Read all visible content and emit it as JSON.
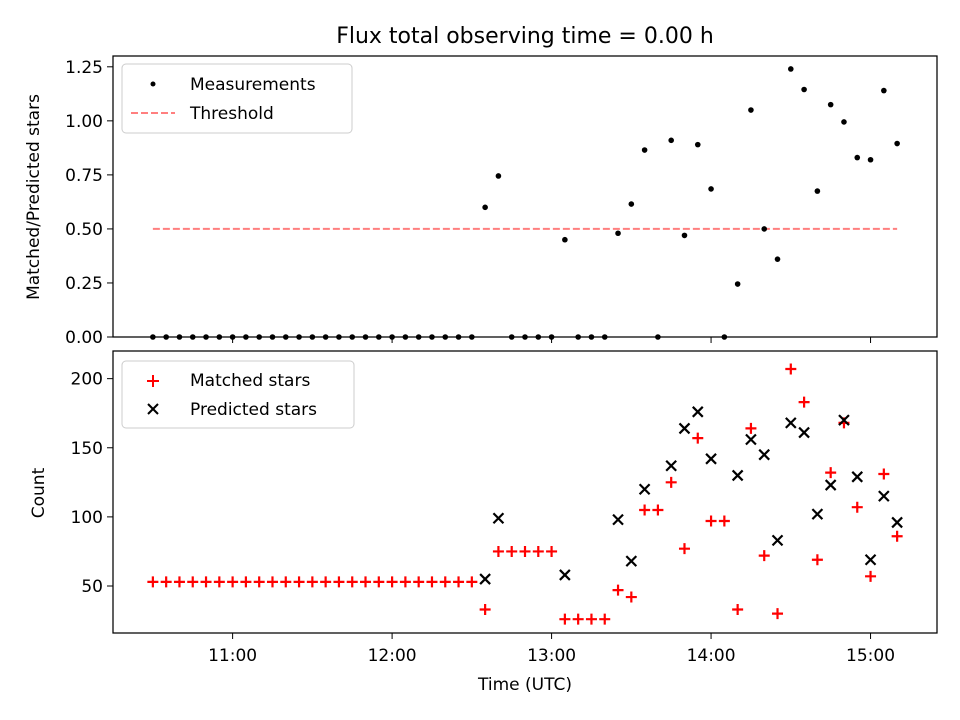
{
  "title": "Flux total observing time = 0.00 h",
  "colors": {
    "matched": "#ff0000",
    "predicted": "#000000",
    "threshold": "#ff7f7f",
    "measurement": "#000000"
  },
  "chart_data": [
    {
      "type": "scatter",
      "title": "Flux total observing time = 0.00 h",
      "xlabel": "",
      "ylabel": "Matched/Predicted stars",
      "ylim": [
        0,
        1.3
      ],
      "xlim": [
        "10:15",
        "15:25"
      ],
      "yticks": [
        "0.00",
        "0.25",
        "0.50",
        "0.75",
        "1.00",
        "1.25"
      ],
      "legend": [
        "Measurements",
        "Threshold"
      ],
      "legend_position": "top-left",
      "series": [
        {
          "name": "Measurements",
          "points": [
            [
              "10:30",
              0
            ],
            [
              "10:35",
              0
            ],
            [
              "10:40",
              0
            ],
            [
              "10:45",
              0
            ],
            [
              "10:50",
              0
            ],
            [
              "10:55",
              0
            ],
            [
              "11:00",
              0
            ],
            [
              "11:05",
              0
            ],
            [
              "11:10",
              0
            ],
            [
              "11:15",
              0
            ],
            [
              "11:20",
              0
            ],
            [
              "11:25",
              0
            ],
            [
              "11:30",
              0
            ],
            [
              "11:35",
              0
            ],
            [
              "11:40",
              0
            ],
            [
              "11:45",
              0
            ],
            [
              "11:50",
              0
            ],
            [
              "11:55",
              0
            ],
            [
              "12:00",
              0
            ],
            [
              "12:05",
              0
            ],
            [
              "12:10",
              0
            ],
            [
              "12:15",
              0
            ],
            [
              "12:20",
              0
            ],
            [
              "12:25",
              0
            ],
            [
              "12:30",
              0
            ],
            [
              "12:35",
              0.6
            ],
            [
              "12:40",
              0.745
            ],
            [
              "12:45",
              0
            ],
            [
              "12:50",
              0
            ],
            [
              "12:55",
              0
            ],
            [
              "13:00",
              0
            ],
            [
              "13:05",
              0.45
            ],
            [
              "13:10",
              0
            ],
            [
              "13:15",
              0
            ],
            [
              "13:20",
              0
            ],
            [
              "13:25",
              0.48
            ],
            [
              "13:30",
              0.615
            ],
            [
              "13:35",
              0.865
            ],
            [
              "13:40",
              0
            ],
            [
              "13:45",
              0.91
            ],
            [
              "13:50",
              0.47
            ],
            [
              "13:55",
              0.89
            ],
            [
              "14:00",
              0.685
            ],
            [
              "14:05",
              0
            ],
            [
              "14:10",
              0.245
            ],
            [
              "14:15",
              1.05
            ],
            [
              "14:20",
              0.5
            ],
            [
              "14:25",
              0.36
            ],
            [
              "14:30",
              1.24
            ],
            [
              "14:35",
              1.145
            ],
            [
              "14:40",
              0.675
            ],
            [
              "14:45",
              1.075
            ],
            [
              "14:50",
              0.995
            ],
            [
              "14:55",
              0.83
            ],
            [
              "15:00",
              0.82
            ],
            [
              "15:05",
              1.14
            ],
            [
              "15:10",
              0.895
            ]
          ]
        },
        {
          "name": "Threshold",
          "x": [
            "10:30",
            "15:10"
          ],
          "y": [
            0.5,
            0.5
          ]
        }
      ]
    },
    {
      "type": "scatter",
      "xlabel": "Time (UTC)",
      "ylabel": "Count",
      "ylim": [
        16,
        220
      ],
      "yticks": [
        "50",
        "100",
        "150",
        "200"
      ],
      "xticks": [
        "11:00",
        "12:00",
        "13:00",
        "14:00",
        "15:00"
      ],
      "legend": [
        "Matched stars",
        "Predicted stars"
      ],
      "legend_position": "top-left",
      "series": [
        {
          "name": "Matched stars",
          "points": [
            [
              "10:30",
              53
            ],
            [
              "10:35",
              53
            ],
            [
              "10:40",
              53
            ],
            [
              "10:45",
              53
            ],
            [
              "10:50",
              53
            ],
            [
              "10:55",
              53
            ],
            [
              "11:00",
              53
            ],
            [
              "11:05",
              53
            ],
            [
              "11:10",
              53
            ],
            [
              "11:15",
              53
            ],
            [
              "11:20",
              53
            ],
            [
              "11:25",
              53
            ],
            [
              "11:30",
              53
            ],
            [
              "11:35",
              53
            ],
            [
              "11:40",
              53
            ],
            [
              "11:45",
              53
            ],
            [
              "11:50",
              53
            ],
            [
              "11:55",
              53
            ],
            [
              "12:00",
              53
            ],
            [
              "12:05",
              53
            ],
            [
              "12:10",
              53
            ],
            [
              "12:15",
              53
            ],
            [
              "12:20",
              53
            ],
            [
              "12:25",
              53
            ],
            [
              "12:30",
              53
            ],
            [
              "12:35",
              33
            ],
            [
              "12:40",
              75
            ],
            [
              "12:45",
              75
            ],
            [
              "12:50",
              75
            ],
            [
              "12:55",
              75
            ],
            [
              "13:00",
              75
            ],
            [
              "13:05",
              26
            ],
            [
              "13:10",
              26
            ],
            [
              "13:15",
              26
            ],
            [
              "13:20",
              26
            ],
            [
              "13:25",
              47
            ],
            [
              "13:30",
              42
            ],
            [
              "13:35",
              105
            ],
            [
              "13:40",
              105
            ],
            [
              "13:45",
              125
            ],
            [
              "13:50",
              77
            ],
            [
              "13:55",
              157
            ],
            [
              "14:00",
              97
            ],
            [
              "14:05",
              97
            ],
            [
              "14:10",
              33
            ],
            [
              "14:15",
              164
            ],
            [
              "14:20",
              72
            ],
            [
              "14:25",
              30
            ],
            [
              "14:30",
              207
            ],
            [
              "14:35",
              183
            ],
            [
              "14:40",
              69
            ],
            [
              "14:45",
              132
            ],
            [
              "14:50",
              168
            ],
            [
              "14:55",
              107
            ],
            [
              "15:00",
              57
            ],
            [
              "15:05",
              131
            ],
            [
              "15:10",
              86
            ]
          ]
        },
        {
          "name": "Predicted stars",
          "points": [
            [
              "12:35",
              55
            ],
            [
              "12:40",
              99
            ],
            [
              "13:05",
              58
            ],
            [
              "13:25",
              98
            ],
            [
              "13:30",
              68
            ],
            [
              "13:35",
              120
            ],
            [
              "13:45",
              137
            ],
            [
              "13:50",
              164
            ],
            [
              "13:55",
              176
            ],
            [
              "14:00",
              142
            ],
            [
              "14:10",
              130
            ],
            [
              "14:15",
              156
            ],
            [
              "14:20",
              145
            ],
            [
              "14:25",
              83
            ],
            [
              "14:30",
              168
            ],
            [
              "14:35",
              161
            ],
            [
              "14:40",
              102
            ],
            [
              "14:45",
              123
            ],
            [
              "14:50",
              170
            ],
            [
              "14:55",
              129
            ],
            [
              "15:00",
              69
            ],
            [
              "15:05",
              115
            ],
            [
              "15:10",
              96
            ]
          ]
        }
      ]
    }
  ]
}
